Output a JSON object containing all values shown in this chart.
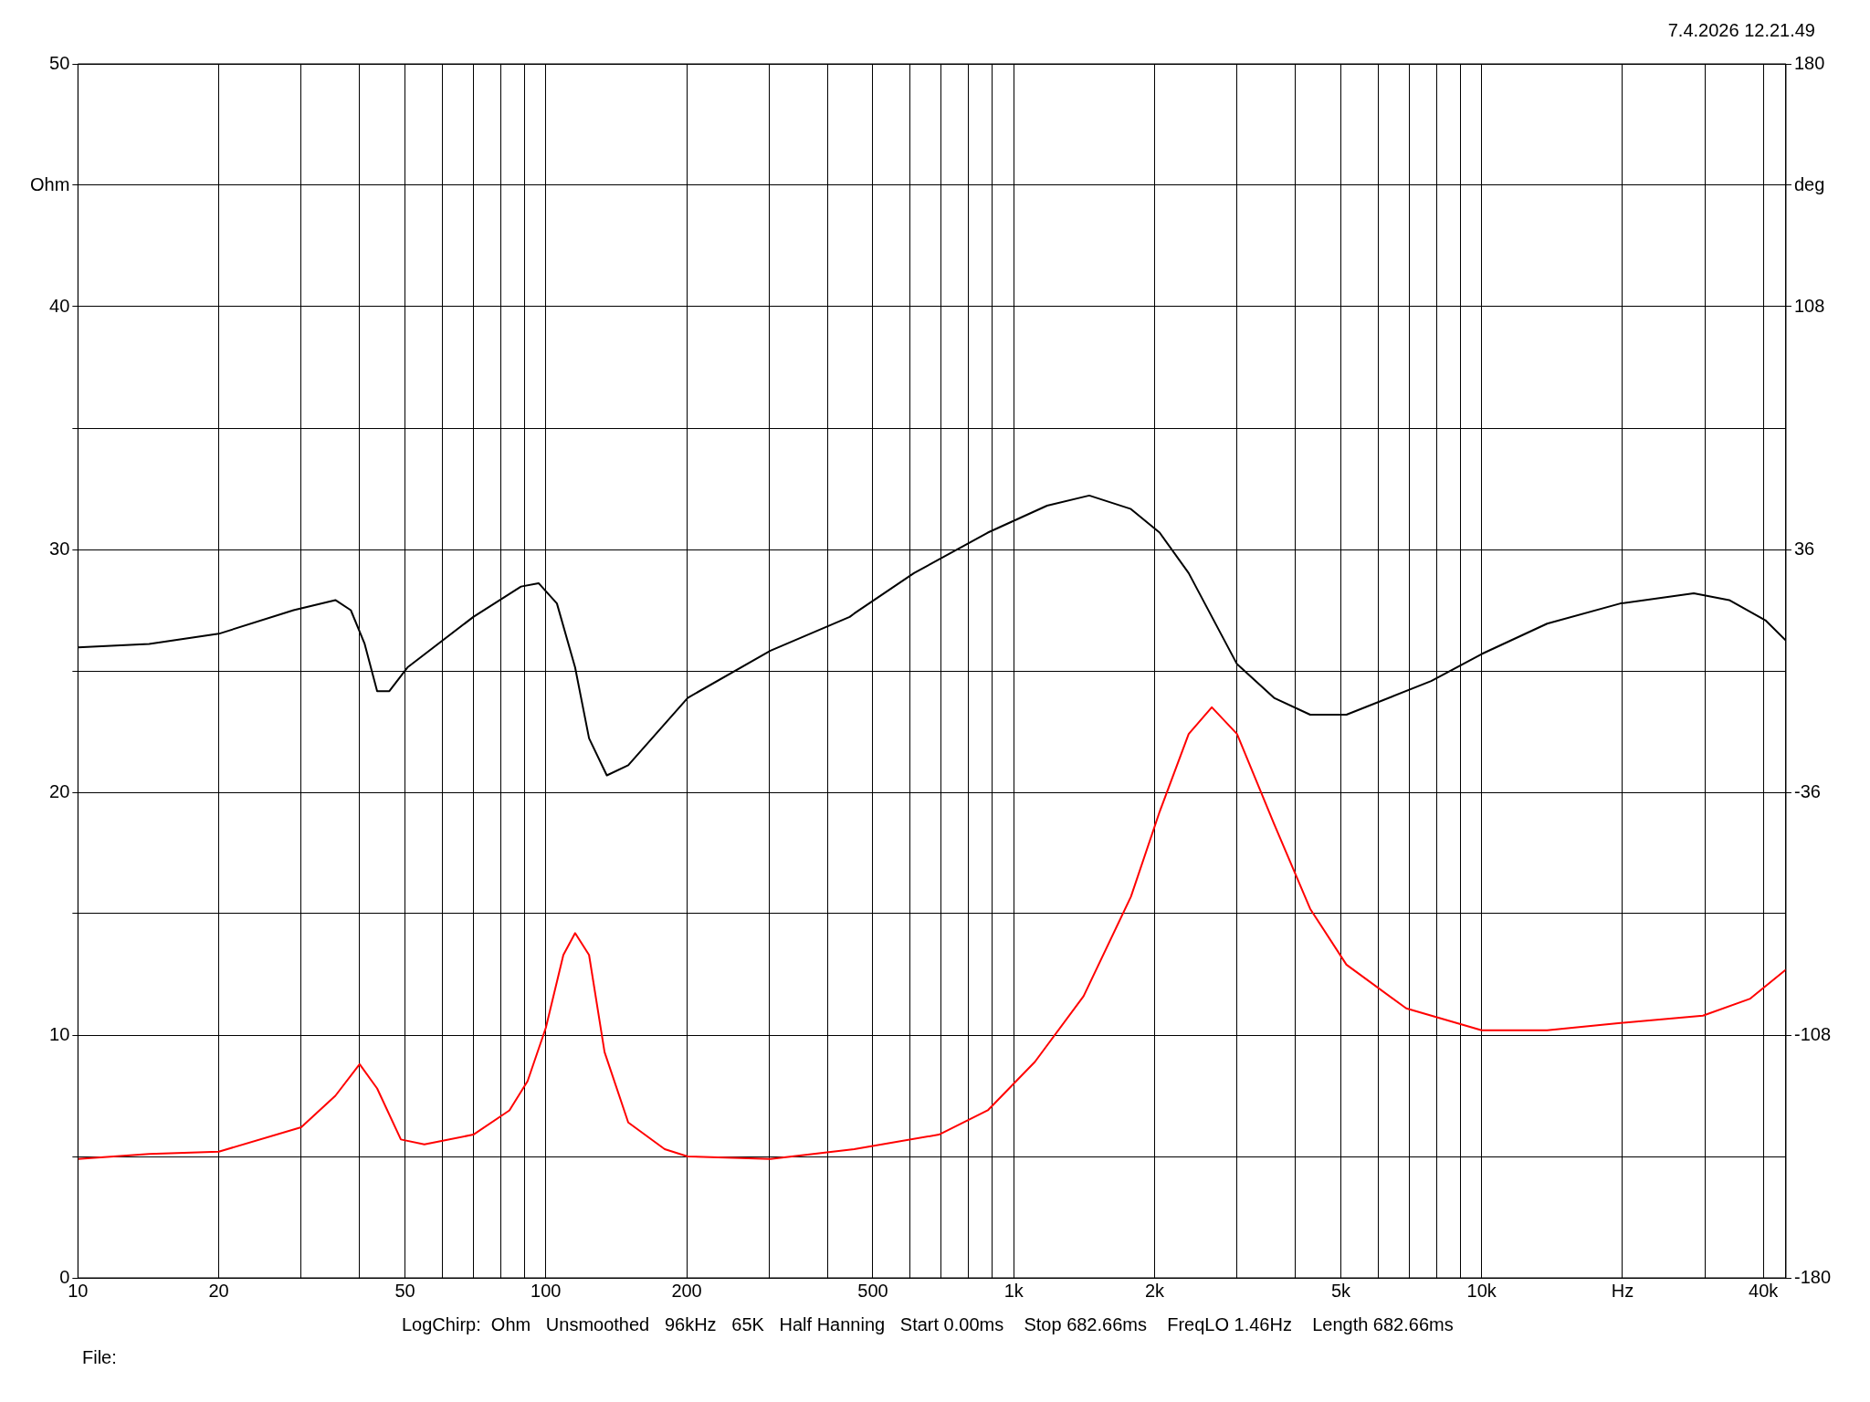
{
  "chart_data": {
    "type": "line",
    "x": [
      10,
      14.2,
      20,
      28.9,
      35.5,
      38.3,
      41,
      43.6,
      46.3,
      50.6,
      70,
      88.5,
      96.5,
      105.6,
      115.5,
      123.7,
      135,
      150,
      201,
      302,
      446,
      456,
      612,
      880,
      1178,
      1450,
      1780,
      2050,
      2365,
      3000,
      3600,
      4300,
      5140,
      7800,
      10000,
      13800,
      19800,
      28400,
      33800,
      40400,
      44700
    ],
    "series": [
      {
        "axis": "y",
        "color": "#ff0000",
        "x": [
          10,
          14.2,
          20,
          30,
          35.5,
          40,
          43.6,
          49,
          55,
          70,
          83.6,
          91.4,
          100,
          109,
          115.5,
          123.7,
          133.5,
          150,
          179.5,
          201,
          302,
          456,
          692,
          880,
          1110,
          1410,
          1780,
          2050,
          2365,
          2650,
          3000,
          3600,
          4300,
          5140,
          6900,
          10000,
          13800,
          19800,
          29700,
          37500,
          44700
        ],
        "values": [
          4.9,
          5.1,
          5.2,
          6.2,
          7.5,
          8.8,
          7.8,
          5.7,
          5.5,
          5.9,
          6.9,
          8.1,
          10.3,
          13.3,
          14.2,
          13.3,
          9.3,
          6.4,
          5.3,
          5.0,
          4.9,
          5.3,
          5.9,
          6.9,
          8.9,
          11.6,
          15.7,
          19.2,
          22.4,
          23.5,
          22.4,
          18.7,
          15.2,
          12.9,
          11.1,
          10.2,
          10.2,
          10.5,
          10.8,
          11.5,
          12.7
        ]
      },
      {
        "axis": "y2",
        "color": "#000000",
        "values": [
          7,
          8,
          11,
          18,
          21,
          18,
          8,
          -6,
          -6,
          1,
          16,
          25,
          26,
          20,
          1,
          -20,
          -31,
          -28,
          -8,
          6,
          16,
          17,
          29,
          41,
          49,
          52,
          48,
          41,
          29,
          2,
          -8,
          -13,
          -13,
          -3,
          5,
          14,
          20,
          23,
          21,
          15,
          9
        ]
      }
    ],
    "xlim": [
      10,
      44700
    ],
    "xticks": [
      10,
      20,
      {
        "value": 30,
        "label": null
      },
      {
        "value": 40,
        "label": null
      },
      50,
      {
        "value": 60,
        "label": null
      },
      {
        "value": 70,
        "label": null
      },
      {
        "value": 80,
        "label": null
      },
      {
        "value": 90,
        "label": null
      },
      100,
      200,
      {
        "value": 300,
        "label": null
      },
      {
        "value": 400,
        "label": null
      },
      500,
      {
        "value": 600,
        "label": null
      },
      {
        "value": 700,
        "label": null
      },
      {
        "value": 800,
        "label": null
      },
      {
        "value": 900,
        "label": null
      },
      {
        "value": 1000,
        "label": "1k"
      },
      {
        "value": 2000,
        "label": "2k"
      },
      {
        "value": 3000,
        "label": null
      },
      {
        "value": 4000,
        "label": null
      },
      {
        "value": 5000,
        "label": "5k"
      },
      {
        "value": 6000,
        "label": null
      },
      {
        "value": 7000,
        "label": null
      },
      {
        "value": 8000,
        "label": null
      },
      {
        "value": 9000,
        "label": null
      },
      {
        "value": 10000,
        "label": "10k"
      },
      {
        "value": 20000,
        "label": "Hz"
      },
      {
        "value": 30000,
        "label": null
      },
      {
        "value": 40000,
        "label": "40k"
      }
    ],
    "ylim": [
      0,
      50
    ],
    "yticks": [
      0,
      {
        "value": 5,
        "label": null
      },
      10,
      {
        "value": 15,
        "label": null
      },
      20,
      {
        "value": 25,
        "label": null
      },
      30,
      {
        "value": 35,
        "label": null
      },
      40,
      {
        "value": 45,
        "label": "Ohm"
      },
      50
    ],
    "y2lim": [
      -180,
      180
    ],
    "y2ticks": [
      -180,
      -108,
      -36,
      36,
      108,
      {
        "value": 144,
        "label": "deg"
      },
      180
    ],
    "log": "x",
    "grid": true,
    "legend": false,
    "marker": "none",
    "line_style": "solid",
    "annotations": [
      "7.4.2026 12.21.49",
      "LogChirp:  Ohm   Unsmoothed   96kHz   65K   Half Hanning   Start 0.00ms    Stop 682.66ms    FreqLO 1.46Hz    Length 682.66ms",
      "File:"
    ]
  }
}
